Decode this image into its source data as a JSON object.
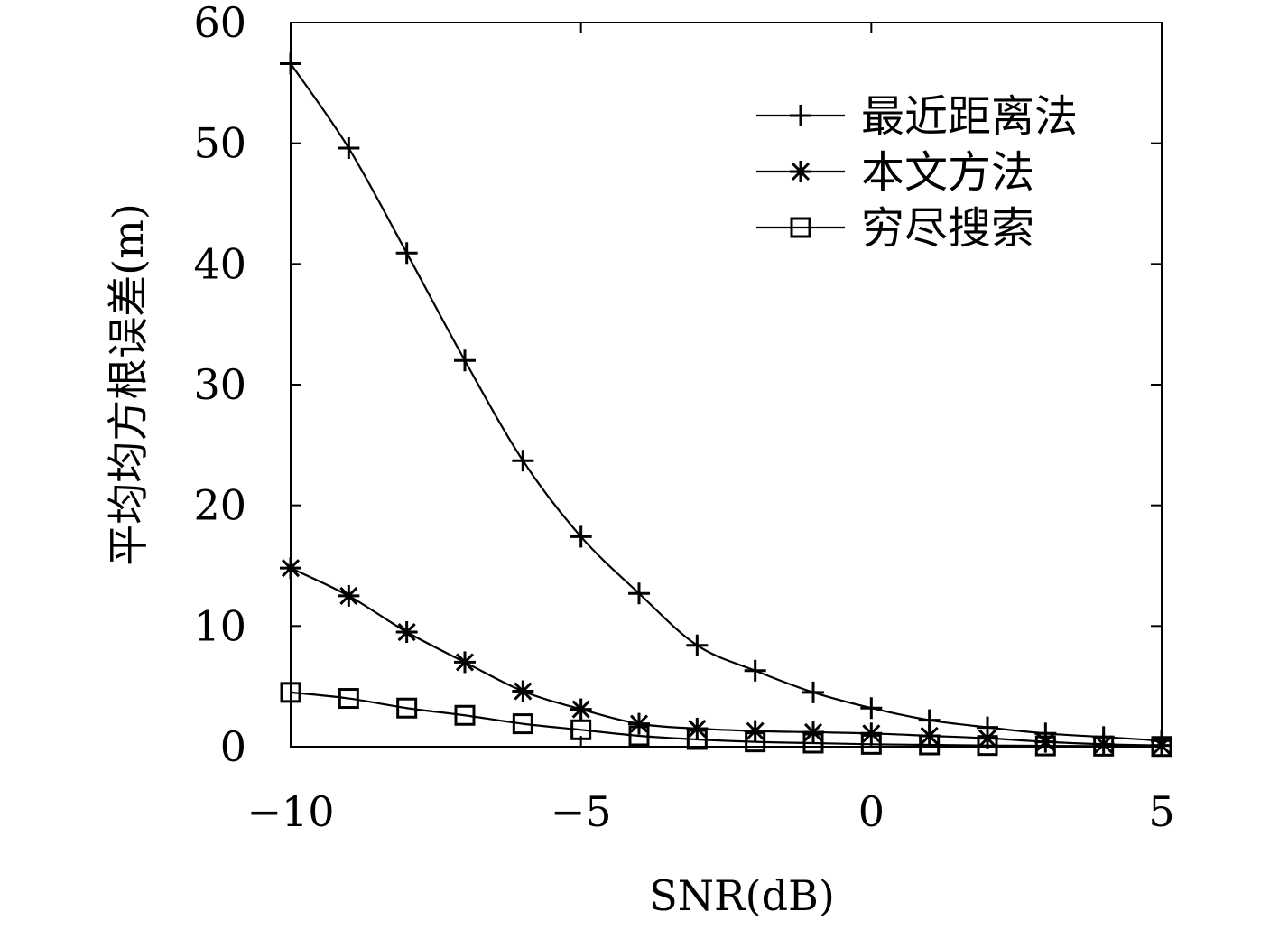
{
  "chart_data": {
    "type": "line",
    "title": "",
    "xlabel": "SNR(dB)",
    "ylabel": "平均均方根误差(m)",
    "xlim": [
      -10,
      5
    ],
    "ylim": [
      0,
      60
    ],
    "xticks": [
      -10,
      -5,
      0,
      5
    ],
    "xtick_labels": [
      "−10",
      "−5",
      "0",
      "5"
    ],
    "yticks": [
      0,
      10,
      20,
      30,
      40,
      50,
      60
    ],
    "ytick_labels": [
      "0",
      "10",
      "20",
      "30",
      "40",
      "50",
      "60"
    ],
    "grid": false,
    "legend_position": "top-right",
    "x": [
      -10,
      -9,
      -8,
      -7,
      -6,
      -5,
      -4,
      -3,
      -2,
      -1,
      0,
      1,
      2,
      3,
      4,
      5
    ],
    "series": [
      {
        "name": "最近距离法",
        "marker": "plus",
        "values": [
          56.6,
          49.6,
          40.9,
          32.0,
          23.7,
          17.4,
          12.7,
          8.4,
          6.3,
          4.5,
          3.2,
          2.2,
          1.6,
          1.1,
          0.8,
          0.5
        ]
      },
      {
        "name": "本文方法",
        "marker": "asterisk",
        "values": [
          14.8,
          12.5,
          9.5,
          7.0,
          4.6,
          3.1,
          1.9,
          1.5,
          1.3,
          1.2,
          1.1,
          0.9,
          0.7,
          0.4,
          0.2,
          0.1
        ]
      },
      {
        "name": "穷尽搜索",
        "marker": "square",
        "values": [
          4.5,
          4.0,
          3.2,
          2.6,
          1.9,
          1.4,
          0.9,
          0.6,
          0.4,
          0.3,
          0.2,
          0.15,
          0.1,
          0.07,
          0.05,
          0.02
        ]
      }
    ]
  }
}
